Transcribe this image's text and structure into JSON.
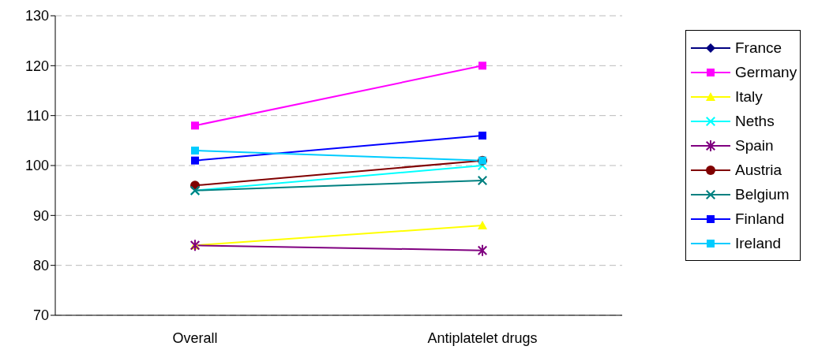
{
  "chart_data": {
    "type": "line",
    "categories": [
      "Overall",
      "Antiplatelet drugs"
    ],
    "ylim": [
      70,
      130
    ],
    "yticks": [
      70,
      80,
      90,
      100,
      110,
      120,
      130
    ],
    "grid": "y",
    "legend": "right",
    "series": [
      {
        "name": "France",
        "color": "#000080",
        "marker": "diamond",
        "values": [
          null,
          null
        ]
      },
      {
        "name": "Germany",
        "color": "#ff00ff",
        "marker": "square",
        "values": [
          108,
          120
        ]
      },
      {
        "name": "Italy",
        "color": "#ffff00",
        "marker": "triangle",
        "values": [
          84,
          88
        ]
      },
      {
        "name": "Neths",
        "color": "#00ffff",
        "marker": "cross",
        "values": [
          95,
          100
        ]
      },
      {
        "name": "Spain",
        "color": "#800080",
        "marker": "star",
        "values": [
          84,
          83
        ]
      },
      {
        "name": "Austria",
        "color": "#800000",
        "marker": "circle",
        "values": [
          96,
          101
        ]
      },
      {
        "name": "Belgium",
        "color": "#008080",
        "marker": "cross",
        "values": [
          95,
          97
        ]
      },
      {
        "name": "Finland",
        "color": "#0000ff",
        "marker": "square",
        "values": [
          101,
          106
        ]
      },
      {
        "name": "Ireland",
        "color": "#00ccff",
        "marker": "square",
        "values": [
          103,
          101
        ]
      }
    ]
  }
}
